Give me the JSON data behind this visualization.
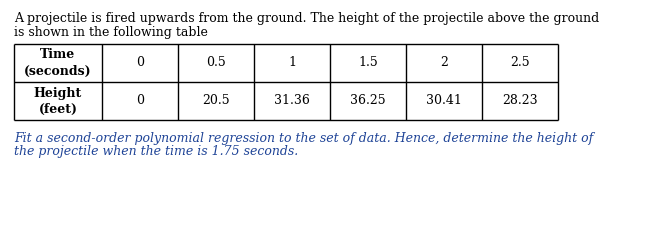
{
  "intro_text_line1": "A projectile is fired upwards from the ground. The height of the projectile above the ground",
  "intro_text_line2": "is shown in the following table",
  "table_row1": [
    "Time\n(seconds)",
    "0",
    "0.5",
    "1",
    "1.5",
    "2",
    "2.5"
  ],
  "table_row2": [
    "Height\n(feet)",
    "0",
    "20.5",
    "31.36",
    "36.25",
    "30.41",
    "28.23"
  ],
  "footer_text_line1": "Fit a second-order polynomial regression to the set of data. Hence, determine the height of",
  "footer_text_line2": "the projectile when the time is 1.75 seconds.",
  "text_color_black": "#000000",
  "text_color_blue": "#1F4497",
  "bg_color": "#ffffff",
  "table_border_color": "#000000",
  "font_size_body": 9.0,
  "font_size_table": 9.0,
  "font_size_footer": 9.0
}
